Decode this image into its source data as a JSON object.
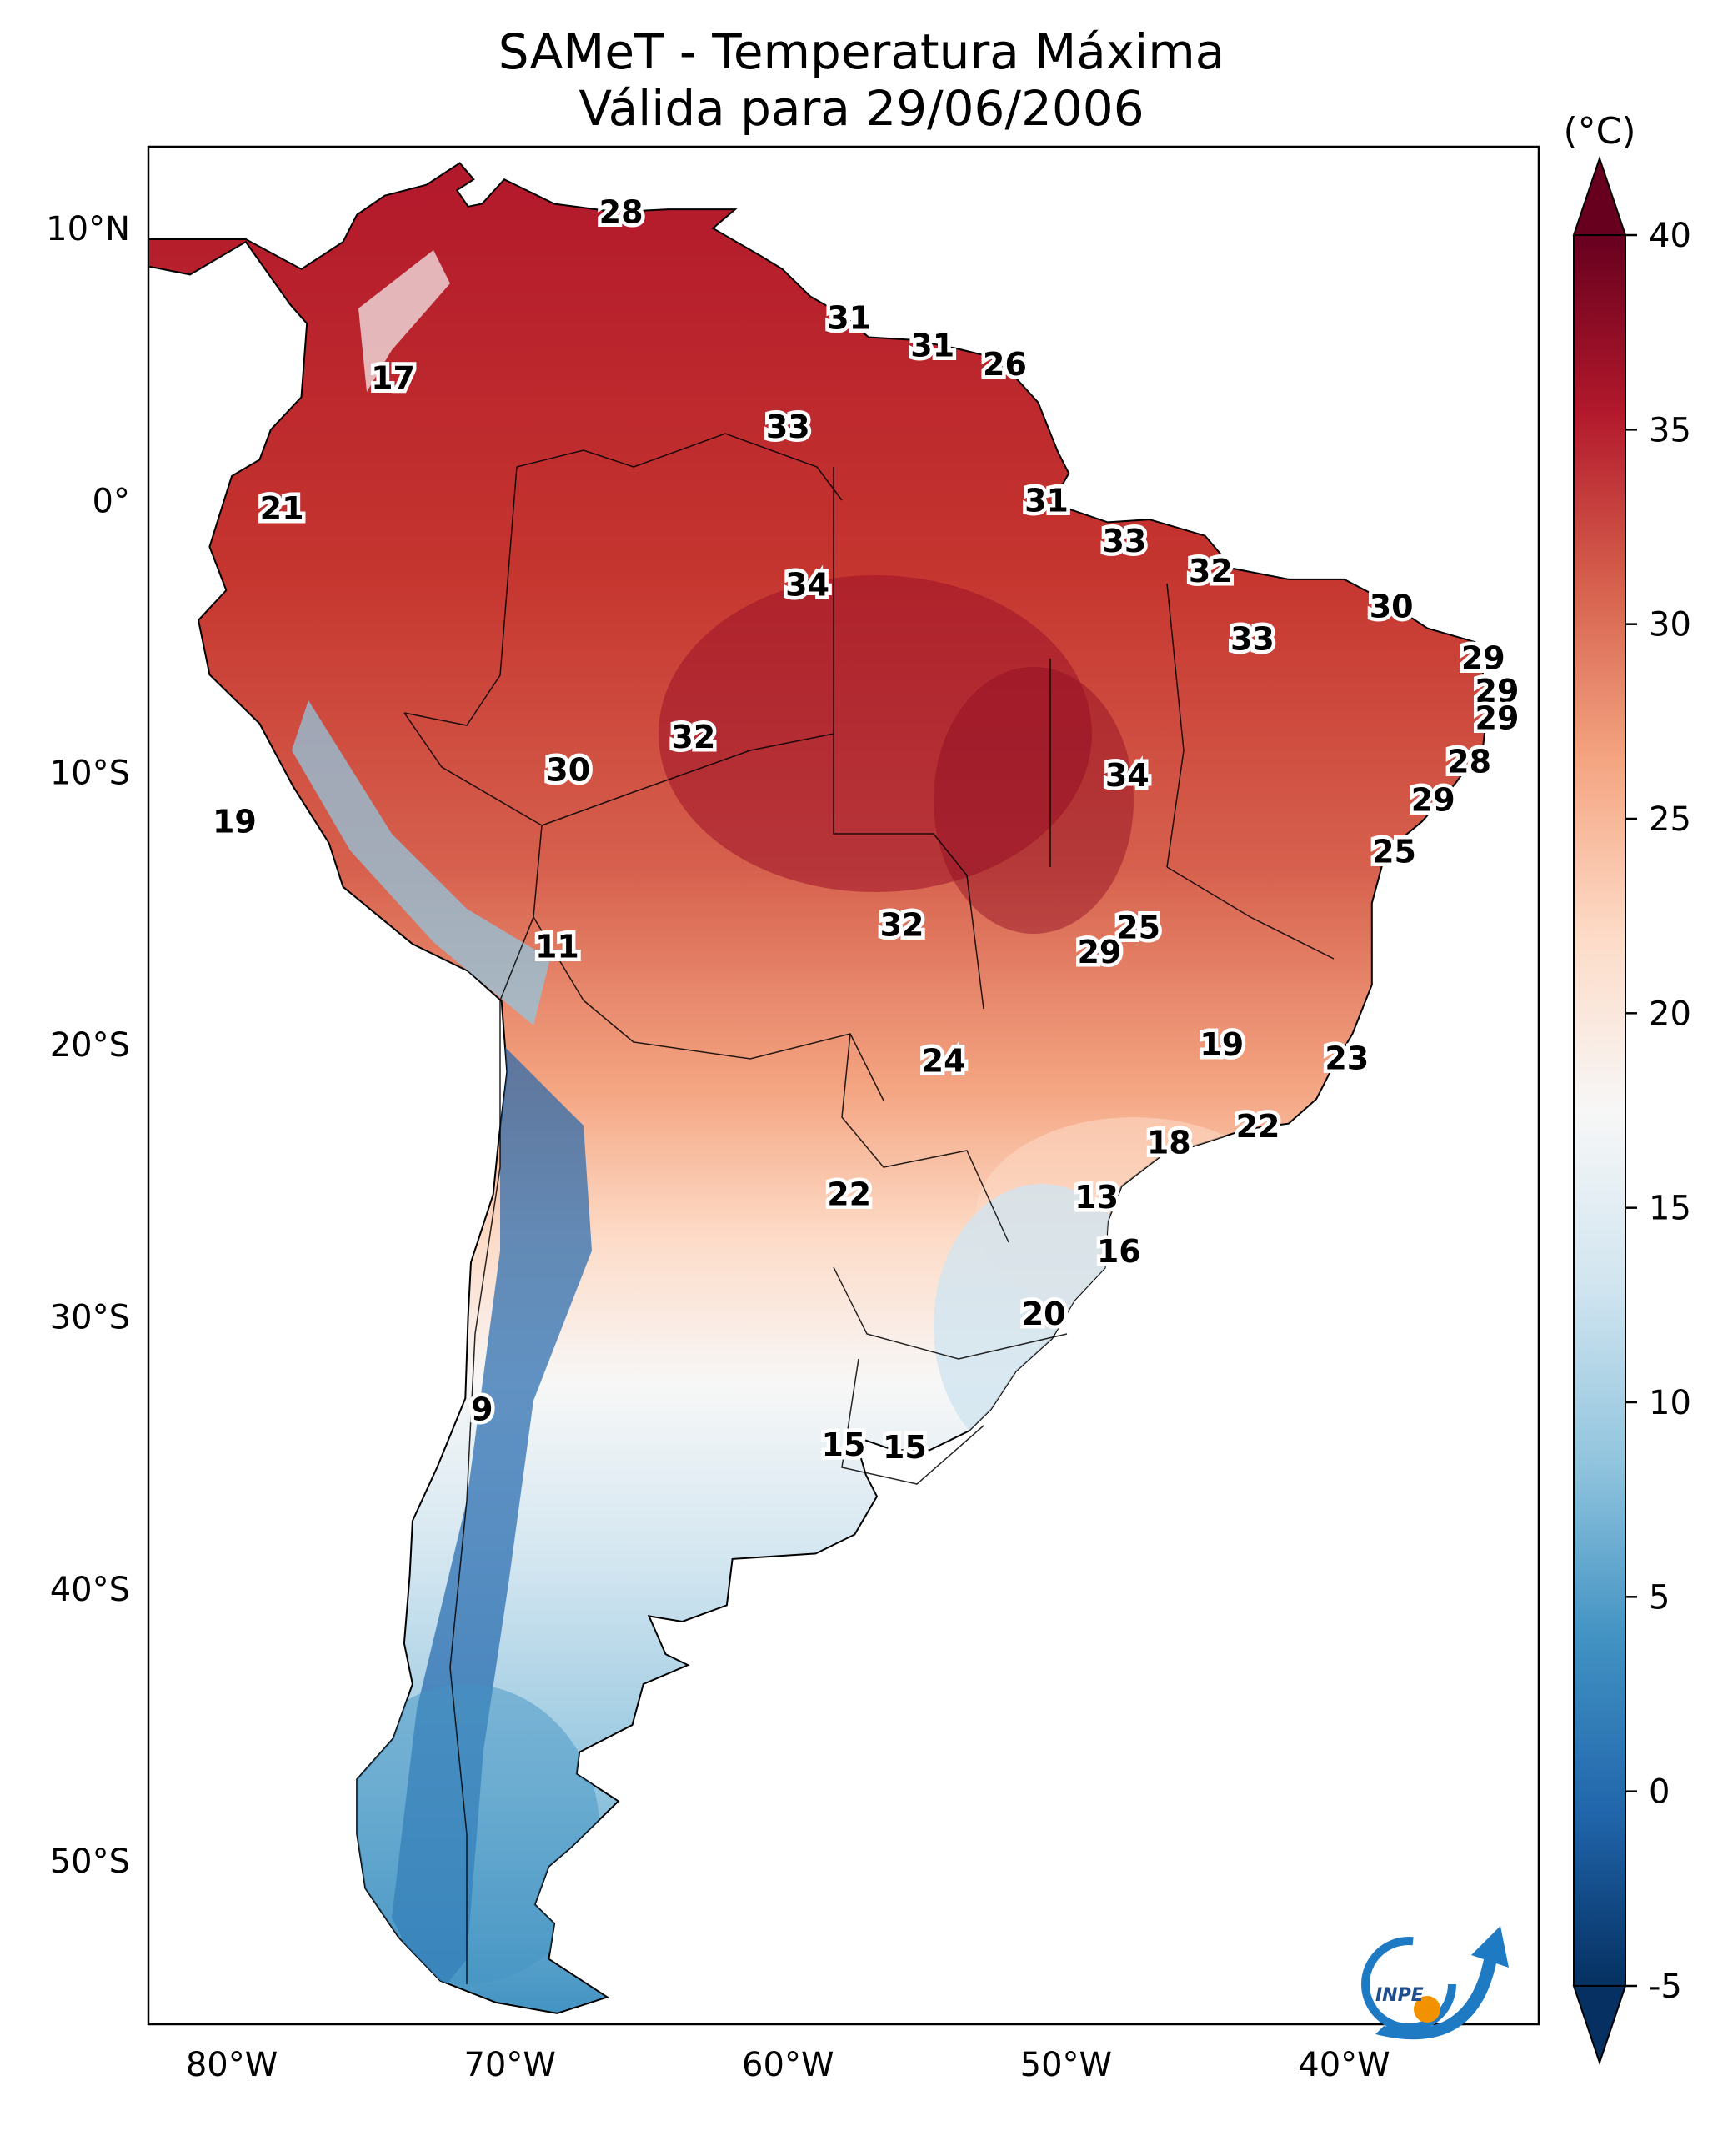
{
  "title": {
    "line1": "SAMeT - Temperatura Máxima",
    "line2": "Válida para 29/06/2006"
  },
  "map": {
    "lon_range": [
      -83,
      -33
    ],
    "lat_range": [
      -56,
      13
    ],
    "lat_ticks": [
      {
        "lat": 10,
        "text": "10°N"
      },
      {
        "lat": 0,
        "text": "0°"
      },
      {
        "lat": -10,
        "text": "10°S"
      },
      {
        "lat": -20,
        "text": "20°S"
      },
      {
        "lat": -30,
        "text": "30°S"
      },
      {
        "lat": -40,
        "text": "40°S"
      },
      {
        "lat": -50,
        "text": "50°S"
      }
    ],
    "lon_ticks": [
      {
        "lon": -80,
        "text": "80°W"
      },
      {
        "lon": -70,
        "text": "70°W"
      },
      {
        "lon": -60,
        "text": "60°W"
      },
      {
        "lon": -50,
        "text": "50°W"
      },
      {
        "lon": -40,
        "text": "40°W"
      }
    ],
    "temperature_labels": [
      {
        "lon": -66.0,
        "lat": 10.6,
        "text": "28"
      },
      {
        "lon": -74.2,
        "lat": 4.5,
        "text": "17"
      },
      {
        "lon": -57.8,
        "lat": 6.7,
        "text": "31"
      },
      {
        "lon": -54.8,
        "lat": 5.7,
        "text": "31"
      },
      {
        "lon": -52.2,
        "lat": 5.0,
        "text": "26"
      },
      {
        "lon": -60.0,
        "lat": 2.7,
        "text": "33"
      },
      {
        "lon": -50.7,
        "lat": 0.0,
        "text": "31"
      },
      {
        "lon": -47.9,
        "lat": -1.5,
        "text": "33"
      },
      {
        "lon": -44.8,
        "lat": -2.6,
        "text": "32"
      },
      {
        "lon": -38.3,
        "lat": -3.9,
        "text": "30"
      },
      {
        "lon": -78.2,
        "lat": -0.3,
        "text": "21"
      },
      {
        "lon": -59.3,
        "lat": -3.1,
        "text": "34"
      },
      {
        "lon": -43.3,
        "lat": -5.1,
        "text": "33"
      },
      {
        "lon": -35.0,
        "lat": -5.8,
        "text": "29"
      },
      {
        "lon": -34.5,
        "lat": -7.0,
        "text": "29"
      },
      {
        "lon": -34.5,
        "lat": -8.0,
        "text": "29"
      },
      {
        "lon": -35.5,
        "lat": -9.6,
        "text": "28"
      },
      {
        "lon": -36.8,
        "lat": -11.0,
        "text": "29"
      },
      {
        "lon": -38.2,
        "lat": -12.9,
        "text": "25"
      },
      {
        "lon": -63.4,
        "lat": -8.7,
        "text": "32"
      },
      {
        "lon": -67.9,
        "lat": -9.9,
        "text": "30"
      },
      {
        "lon": -47.8,
        "lat": -10.1,
        "text": "34"
      },
      {
        "lon": -79.9,
        "lat": -11.8,
        "text": "19"
      },
      {
        "lon": -55.9,
        "lat": -15.6,
        "text": "32"
      },
      {
        "lon": -47.4,
        "lat": -15.7,
        "text": "25"
      },
      {
        "lon": -48.8,
        "lat": -16.6,
        "text": "29"
      },
      {
        "lon": -68.3,
        "lat": -16.4,
        "text": "11"
      },
      {
        "lon": -54.4,
        "lat": -20.6,
        "text": "24"
      },
      {
        "lon": -44.4,
        "lat": -20.0,
        "text": "19"
      },
      {
        "lon": -39.9,
        "lat": -20.5,
        "text": "23"
      },
      {
        "lon": -43.1,
        "lat": -23.0,
        "text": "22"
      },
      {
        "lon": -46.3,
        "lat": -23.6,
        "text": "18"
      },
      {
        "lon": -57.8,
        "lat": -25.5,
        "text": "22"
      },
      {
        "lon": -48.9,
        "lat": -25.6,
        "text": "13"
      },
      {
        "lon": -48.1,
        "lat": -27.6,
        "text": "16"
      },
      {
        "lon": -50.8,
        "lat": -29.9,
        "text": "20"
      },
      {
        "lon": -71.0,
        "lat": -33.4,
        "text": "9"
      },
      {
        "lon": -58.0,
        "lat": -34.7,
        "text": "15"
      },
      {
        "lon": -55.8,
        "lat": -34.8,
        "text": "15"
      }
    ]
  },
  "colorbar": {
    "unit": "(°C)",
    "min": -5,
    "max": 40,
    "ticks": [
      "40",
      "35",
      "30",
      "25",
      "20",
      "15",
      "10",
      "5",
      "0",
      "-5"
    ],
    "colormap": "RdBu_r",
    "colors": [
      "#053061",
      "#2166ac",
      "#4393c3",
      "#92c5de",
      "#d1e5f0",
      "#f7f7f7",
      "#fddbc7",
      "#f4a582",
      "#d6604d",
      "#b2182b",
      "#67001f"
    ],
    "extend": "both"
  },
  "logo": {
    "text": "INPE",
    "colors": [
      "#1f7ac4",
      "#f39200"
    ]
  }
}
